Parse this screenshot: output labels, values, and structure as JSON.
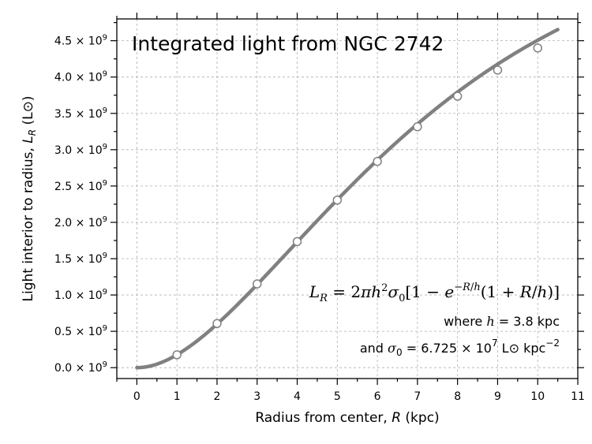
{
  "chart_data": {
    "type": "line",
    "title": "Integrated light from NGC 2742",
    "xlabel": "Radius from center, R (kpc)",
    "ylabel": "Light interior to radius, L_R (L⊙)",
    "xlim": [
      -0.5,
      11
    ],
    "ylim": [
      -150000000.0,
      4800000000.0
    ],
    "x_ticks": [
      0,
      1,
      2,
      3,
      4,
      5,
      6,
      7,
      8,
      9,
      10,
      11
    ],
    "y_ticks": [
      0,
      500000000.0,
      1000000000.0,
      1500000000.0,
      2000000000.0,
      2500000000.0,
      3000000000.0,
      3500000000.0,
      4000000000.0,
      4500000000.0
    ],
    "y_tick_labels": [
      "0.0",
      "0.5",
      "1.0",
      "1.5",
      "2.0",
      "2.5",
      "3.0",
      "3.5",
      "4.0",
      "4.5"
    ],
    "y_tick_suffix": "× 10",
    "y_tick_exponent": "9",
    "grid": true,
    "series": [
      {
        "kind": "curve",
        "color": "#808080",
        "model": {
          "h": 3.8,
          "sigma0": 67250000.0,
          "x_range": [
            0,
            10.5
          ]
        }
      },
      {
        "kind": "markers",
        "color": "#808080",
        "fill": "#ffffff",
        "x": [
          1,
          2,
          3,
          4,
          5,
          6,
          7,
          8,
          9,
          10
        ],
        "y": [
          177000000.0,
          607000000.0,
          1152000000.0,
          1735000000.0,
          2306000000.0,
          2838000000.0,
          3316000000.0,
          3736000000.0,
          4096000000.0,
          4400000000.0
        ]
      }
    ],
    "annotations": {
      "equation": "L_R = 2πh²σ₀[1 − e^(−R/h)(1 + R/h)]",
      "line2": "where h = 3.8 kpc",
      "line3": "and σ₀ = 6.725 × 10⁷ L⊙ kpc⁻²"
    }
  }
}
